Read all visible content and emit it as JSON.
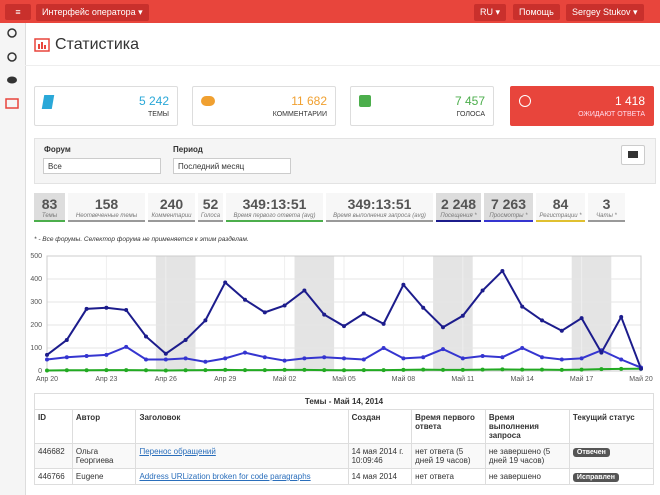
{
  "topbar": {
    "menu": "Интерфейс оператора",
    "lang": "RU",
    "help": "Помощь",
    "user": "Sergey Stukov"
  },
  "page": {
    "title": "Статистика"
  },
  "cards": [
    {
      "value": "5 242",
      "label": "ТЕМЫ"
    },
    {
      "value": "11 682",
      "label": "КОММЕНТАРИИ"
    },
    {
      "value": "7 457",
      "label": "ГОЛОСА"
    },
    {
      "value": "1 418",
      "label": "ОЖИДАЮТ ОТВЕТА"
    }
  ],
  "filters": {
    "forum_label": "Форум",
    "forum_value": "Все",
    "period_label": "Период",
    "period_value": "Последний месяц"
  },
  "stats": [
    {
      "value": "83",
      "label": "Темы"
    },
    {
      "value": "158",
      "label": "Неотвеченные темы"
    },
    {
      "value": "240",
      "label": "Комментарии"
    },
    {
      "value": "52",
      "label": "Голоса"
    },
    {
      "value": "349:13:51",
      "label": "Время первого ответа (avg)"
    },
    {
      "value": "349:13:51",
      "label": "Время выполнения запроса (avg)"
    },
    {
      "value": "2 248",
      "label": "Посещения *"
    },
    {
      "value": "7 263",
      "label": "Просмотры *"
    },
    {
      "value": "84",
      "label": "Регистрации *"
    },
    {
      "value": "3",
      "label": "Чаты *"
    }
  ],
  "note": "* - Все форумы. Селектор форума не применяется к этим разделам.",
  "chart_data": {
    "type": "line",
    "categories": [
      "Апр 20",
      null,
      null,
      "Апр 23",
      null,
      null,
      "Апр 26",
      null,
      null,
      "Апр 29",
      null,
      null,
      "Май 02",
      null,
      null,
      "Май 05",
      null,
      null,
      "Май 08",
      null,
      null,
      "Май 11",
      null,
      null,
      "Май 14",
      null,
      null,
      "Май 17",
      null,
      null,
      "Май 20"
    ],
    "series": [
      {
        "name": "Просмотры",
        "color": "#1c1c8c",
        "values": [
          70,
          135,
          270,
          275,
          265,
          150,
          75,
          135,
          220,
          385,
          310,
          255,
          285,
          350,
          245,
          195,
          250,
          205,
          375,
          275,
          190,
          240,
          350,
          435,
          280,
          220,
          175,
          230,
          80,
          235,
          10
        ]
      },
      {
        "name": "Посещения",
        "color": "#3535d0",
        "values": [
          50,
          60,
          65,
          70,
          105,
          50,
          50,
          55,
          40,
          55,
          80,
          60,
          45,
          55,
          60,
          55,
          50,
          100,
          55,
          60,
          95,
          55,
          65,
          60,
          100,
          60,
          50,
          55,
          90,
          50,
          15
        ]
      },
      {
        "name": "Темы",
        "color": "#22aa22",
        "values": [
          2,
          3,
          3,
          4,
          4,
          3,
          2,
          3,
          4,
          5,
          4,
          4,
          5,
          5,
          4,
          3,
          4,
          4,
          5,
          6,
          5,
          5,
          6,
          7,
          6,
          6,
          5,
          6,
          8,
          9,
          10
        ]
      }
    ],
    "ylim": [
      0,
      500
    ],
    "yticks": [
      0,
      100,
      200,
      300,
      400,
      500
    ],
    "grid": true
  },
  "table": {
    "title": "Темы - Май 14, 2014",
    "columns": [
      "ID",
      "Автор",
      "Заголовок",
      "Создан",
      "Время первого ответа",
      "Время выполнения запроса",
      "Текущий статус"
    ],
    "rows": [
      [
        "446682",
        "Ольга Георгиева",
        "Перенос обращений",
        "14 мая 2014 г. 10:09:46",
        "нет ответа (5 дней 19 часов)",
        "не завершено (5 дней 19 часов)",
        "Отвечен"
      ],
      [
        "446766",
        "Eugene",
        "Address URLization broken for code paragraphs",
        "14 мая 2014",
        "нет ответа",
        "не завершено",
        "Исправлен"
      ]
    ]
  }
}
